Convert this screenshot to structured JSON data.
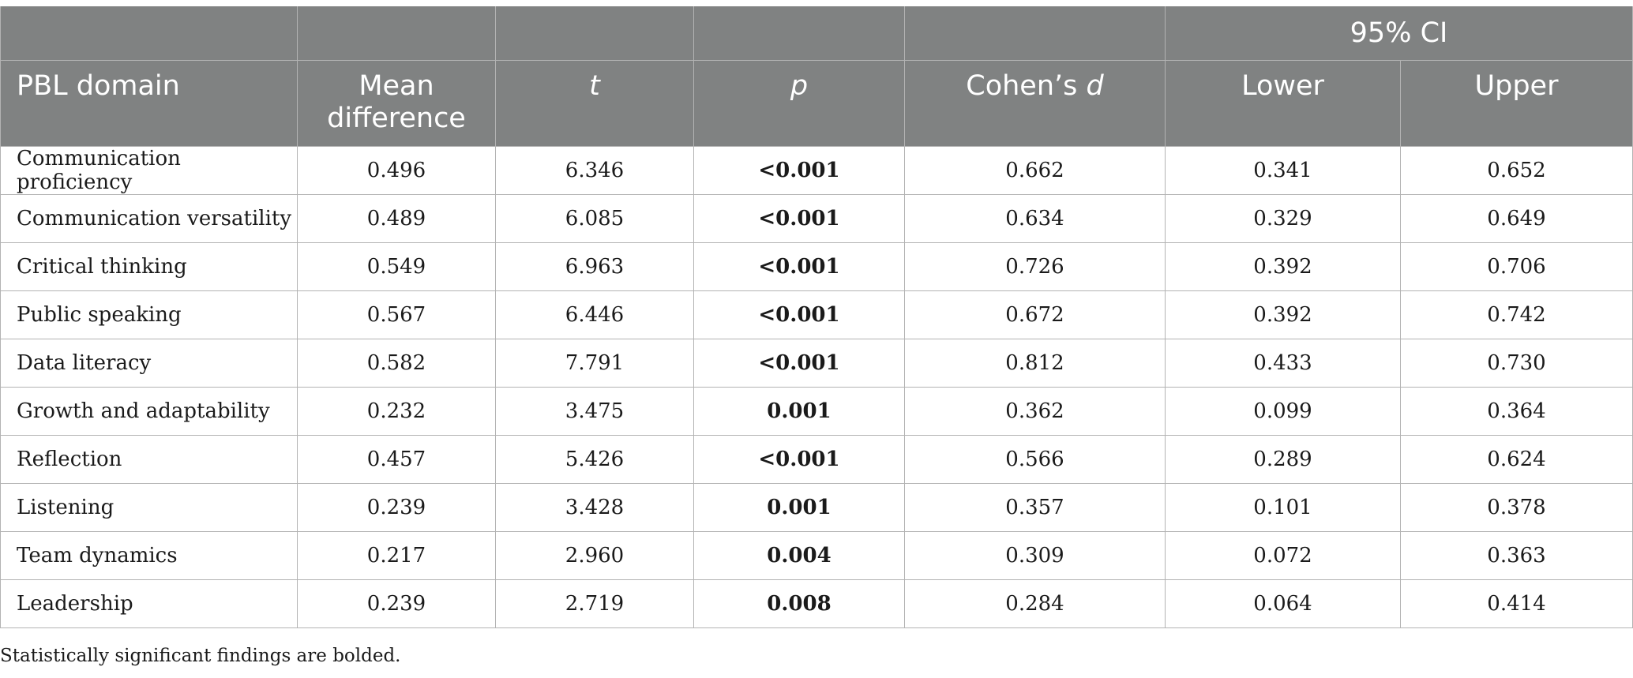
{
  "header": {
    "ci_group": "95% CI",
    "domain": "PBL domain",
    "mean_line1": "Mean",
    "mean_line2": "difference",
    "t": "t",
    "p": "p",
    "cohens_prefix": "Cohen’s ",
    "cohens_var": "d",
    "lower": "Lower",
    "upper": "Upper"
  },
  "rows": [
    {
      "domain": "Communication proficiency",
      "mean": "0.496",
      "t": "6.346",
      "p": "<0.001",
      "d": "0.662",
      "lower": "0.341",
      "upper": "0.652"
    },
    {
      "domain": "Communication versatility",
      "mean": "0.489",
      "t": "6.085",
      "p": "<0.001",
      "d": "0.634",
      "lower": "0.329",
      "upper": "0.649"
    },
    {
      "domain": "Critical thinking",
      "mean": "0.549",
      "t": "6.963",
      "p": "<0.001",
      "d": "0.726",
      "lower": "0.392",
      "upper": "0.706"
    },
    {
      "domain": "Public speaking",
      "mean": "0.567",
      "t": "6.446",
      "p": "<0.001",
      "d": "0.672",
      "lower": "0.392",
      "upper": "0.742"
    },
    {
      "domain": "Data literacy",
      "mean": "0.582",
      "t": "7.791",
      "p": "<0.001",
      "d": "0.812",
      "lower": "0.433",
      "upper": "0.730"
    },
    {
      "domain": "Growth and adaptability",
      "mean": "0.232",
      "t": "3.475",
      "p": "0.001",
      "d": "0.362",
      "lower": "0.099",
      "upper": "0.364"
    },
    {
      "domain": "Reflection",
      "mean": "0.457",
      "t": "5.426",
      "p": "<0.001",
      "d": "0.566",
      "lower": "0.289",
      "upper": "0.624"
    },
    {
      "domain": "Listening",
      "mean": "0.239",
      "t": "3.428",
      "p": "0.001",
      "d": "0.357",
      "lower": "0.101",
      "upper": "0.378"
    },
    {
      "domain": "Team dynamics",
      "mean": "0.217",
      "t": "2.960",
      "p": "0.004",
      "d": "0.309",
      "lower": "0.072",
      "upper": "0.363"
    },
    {
      "domain": "Leadership",
      "mean": "0.239",
      "t": "2.719",
      "p": "0.008",
      "d": "0.284",
      "lower": "0.064",
      "upper": "0.414"
    }
  ],
  "footnote": "Statistically significant findings are bolded.",
  "colors": {
    "header_bg": "#808282",
    "header_text": "#ffffff",
    "border": "#b3b3b3"
  }
}
